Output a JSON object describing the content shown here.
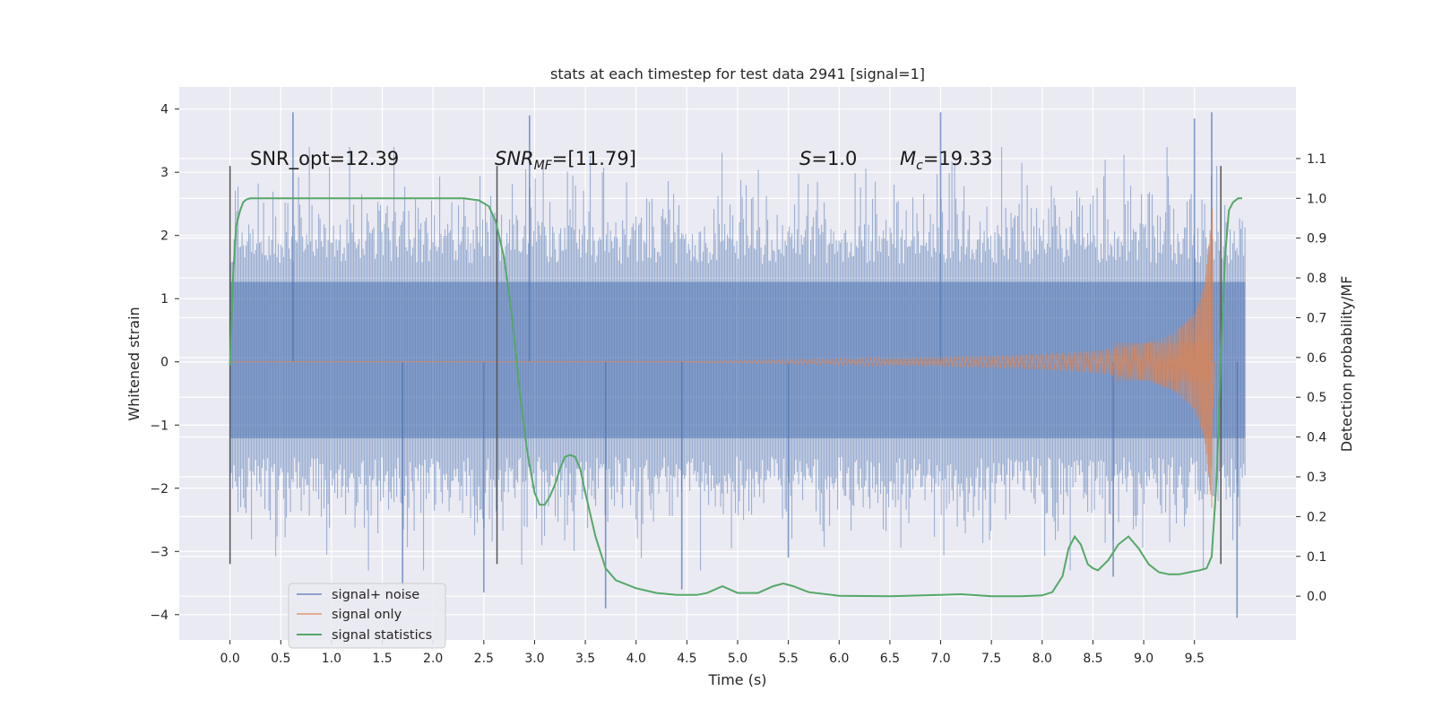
{
  "chart_data": {
    "type": "line",
    "title": "stats at each timestep for test data 2941 [signal=1]",
    "xlabel": "Time (s)",
    "ylabel": "Whitened strain",
    "ylabel_right": "Detection probability/MF",
    "xlim": [
      -0.5,
      10.5
    ],
    "ylim": [
      -4.4,
      4.35
    ],
    "ylim_right": [
      -0.11,
      1.28
    ],
    "x_ticks": [
      "0.0",
      "0.5",
      "1.0",
      "1.5",
      "2.0",
      "2.5",
      "3.0",
      "3.5",
      "4.0",
      "4.5",
      "5.0",
      "5.5",
      "6.0",
      "6.5",
      "7.0",
      "7.5",
      "8.0",
      "8.5",
      "9.0",
      "9.5"
    ],
    "y_ticks": [
      "4",
      "3",
      "2",
      "1",
      "0",
      "−1",
      "−2",
      "−3",
      "−4"
    ],
    "y_ticks_right": [
      "1.1",
      "1.0",
      "0.9",
      "0.8",
      "0.7",
      "0.6",
      "0.5",
      "0.4",
      "0.3",
      "0.2",
      "0.1",
      "0.0"
    ],
    "grid": true,
    "legend_position": "lower-left",
    "colors": {
      "noise": "#4c72b0",
      "signal": "#dd8452",
      "stats": "#55a868",
      "markers": "#555555",
      "background": "#eaeaf2",
      "grid": "#ffffff"
    },
    "annotations": {
      "snr_opt": "SNR_opt=12.39",
      "snr_mf_name": "SNR",
      "snr_mf_sub": "MF",
      "snr_mf_value": "=[11.79]",
      "s_name": "S",
      "s_value": "=1.0",
      "mc_name": "M",
      "mc_sub": "c",
      "mc_value": "=19.33"
    },
    "vlines_x": [
      0.0,
      2.63,
      9.76
    ],
    "series": [
      {
        "name": "signal+ noise",
        "x_range": [
          0.0,
          10.0
        ],
        "typical_envelope": [
          -2.2,
          2.3
        ],
        "peak_values": [
          {
            "x": 0.62,
            "y": 3.95
          },
          {
            "x": 1.7,
            "y": -3.55
          },
          {
            "x": 2.5,
            "y": -3.65
          },
          {
            "x": 2.95,
            "y": 3.9
          },
          {
            "x": 3.7,
            "y": -3.9
          },
          {
            "x": 4.45,
            "y": -3.6
          },
          {
            "x": 5.5,
            "y": -3.1
          },
          {
            "x": 7.0,
            "y": 3.95
          },
          {
            "x": 8.7,
            "y": -3.4
          },
          {
            "x": 9.5,
            "y": 3.85
          },
          {
            "x": 9.67,
            "y": 3.95
          },
          {
            "x": 9.92,
            "y": -4.05
          }
        ]
      },
      {
        "name": "signal only",
        "chirp_amplitude": [
          [
            0.0,
            0.0
          ],
          [
            4.5,
            0.01
          ],
          [
            5.0,
            0.02
          ],
          [
            6.0,
            0.05
          ],
          [
            7.0,
            0.08
          ],
          [
            8.0,
            0.12
          ],
          [
            8.5,
            0.17
          ],
          [
            9.0,
            0.28
          ],
          [
            9.3,
            0.45
          ],
          [
            9.5,
            0.75
          ],
          [
            9.6,
            1.2
          ],
          [
            9.66,
            2.1
          ],
          [
            9.68,
            2.5
          ]
        ],
        "merger_x": 9.68
      },
      {
        "name": "signal statistics",
        "axis": "right",
        "x": [
          0.0,
          0.03,
          0.06,
          0.1,
          0.13,
          0.16,
          0.2,
          0.3,
          0.5,
          1.0,
          1.5,
          2.0,
          2.3,
          2.45,
          2.55,
          2.62,
          2.7,
          2.78,
          2.86,
          2.93,
          3.0,
          3.05,
          3.1,
          3.15,
          3.2,
          3.25,
          3.3,
          3.35,
          3.4,
          3.45,
          3.5,
          3.6,
          3.7,
          3.8,
          4.0,
          4.2,
          4.4,
          4.6,
          4.7,
          4.85,
          5.0,
          5.2,
          5.35,
          5.45,
          5.55,
          5.7,
          6.0,
          6.5,
          7.0,
          7.2,
          7.5,
          7.8,
          8.0,
          8.1,
          8.2,
          8.26,
          8.32,
          8.38,
          8.45,
          8.5,
          8.55,
          8.65,
          8.75,
          8.85,
          8.95,
          9.05,
          9.15,
          9.25,
          9.35,
          9.45,
          9.55,
          9.62,
          9.67,
          9.72,
          9.76,
          9.8,
          9.84,
          9.88,
          9.93,
          9.97
        ],
        "values": [
          0.58,
          0.8,
          0.93,
          0.97,
          0.99,
          0.997,
          1.0,
          1.0,
          1.0,
          1.0,
          1.0,
          1.0,
          1.0,
          0.995,
          0.98,
          0.94,
          0.85,
          0.7,
          0.5,
          0.36,
          0.26,
          0.23,
          0.23,
          0.25,
          0.28,
          0.32,
          0.35,
          0.355,
          0.35,
          0.32,
          0.26,
          0.15,
          0.07,
          0.04,
          0.02,
          0.008,
          0.003,
          0.003,
          0.008,
          0.025,
          0.008,
          0.008,
          0.025,
          0.032,
          0.025,
          0.01,
          0.001,
          0.0,
          0.003,
          0.005,
          0.0,
          0.0,
          0.002,
          0.01,
          0.05,
          0.12,
          0.15,
          0.13,
          0.08,
          0.07,
          0.065,
          0.09,
          0.13,
          0.15,
          0.12,
          0.08,
          0.06,
          0.055,
          0.055,
          0.06,
          0.065,
          0.07,
          0.1,
          0.3,
          0.6,
          0.85,
          0.97,
          0.99,
          1.0,
          1.0
        ]
      }
    ]
  }
}
